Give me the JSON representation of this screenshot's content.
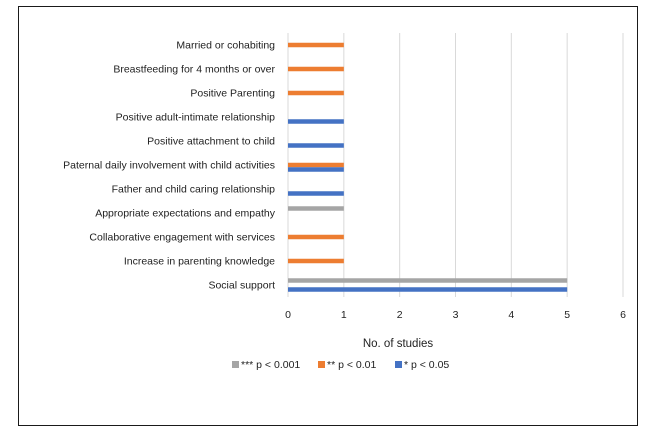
{
  "chart_data": {
    "type": "bar",
    "orientation": "horizontal",
    "categories": [
      "Married or cohabiting",
      "Breastfeeding for 4 months or over",
      "Positive Parenting",
      "Positive adult-intimate relationship",
      "Positive attachment to child",
      "Paternal daily involvement with child activities",
      "Father and child caring relationship",
      "Appropriate expectations and empathy",
      "Collaborative engagement with services",
      "Increase in parenting knowledge",
      "Social support"
    ],
    "series": [
      {
        "name": "*** p < 0.001",
        "color": "#A5A5A5",
        "values": [
          0,
          0,
          0,
          0,
          0,
          0,
          0,
          1,
          0,
          0,
          5
        ]
      },
      {
        "name": "** p < 0.01",
        "color": "#ED7D31",
        "values": [
          1,
          1,
          1,
          0,
          0,
          1,
          0,
          0,
          1,
          1,
          0
        ]
      },
      {
        "name": "* p < 0.05",
        "color": "#4472C4",
        "values": [
          0,
          0,
          0,
          1,
          1,
          1,
          1,
          0,
          0,
          0,
          5
        ]
      }
    ],
    "xticks": [
      "0",
      "1",
      "2",
      "3",
      "4",
      "5",
      "6"
    ],
    "xlim": [
      0,
      6
    ],
    "xlabel": "No. of studies",
    "ylabel": "",
    "title": "",
    "grid": "vertical",
    "legend_position": "bottom"
  }
}
